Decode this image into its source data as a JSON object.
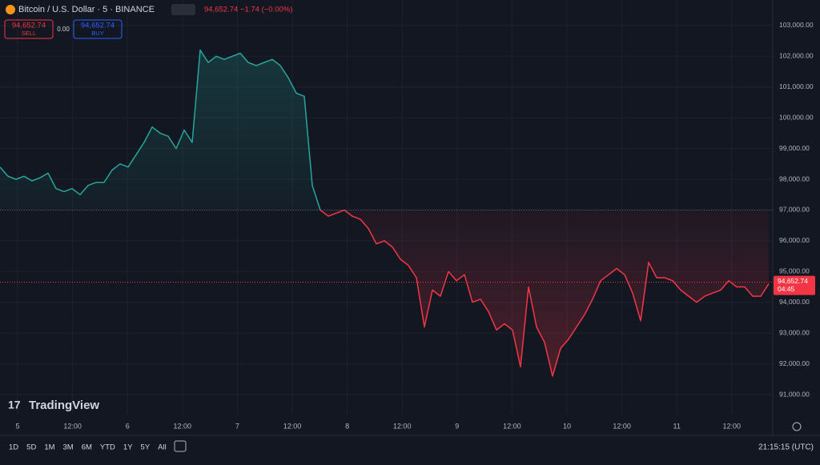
{
  "header": {
    "symbol": "Bitcoin / U.S. Dollar · 5 · BINANCE",
    "quote": "94,652.74 −1.74 (−0.00%)",
    "sell_price": "94,652.74",
    "sell_label": "SELL",
    "spread": "0.00",
    "buy_price": "94,652.74",
    "buy_label": "BUY"
  },
  "chart_data": {
    "type": "line",
    "x_labels": [
      "5",
      "12:00",
      "6",
      "12:00",
      "7",
      "12:00",
      "8",
      "12:00",
      "9",
      "12:00",
      "10",
      "12:00",
      "11",
      "12:00"
    ],
    "values": [
      98400,
      98100,
      98000,
      98100,
      97950,
      98050,
      98200,
      97700,
      97600,
      97700,
      97500,
      97800,
      97900,
      97900,
      98300,
      98500,
      98400,
      98800,
      99200,
      99700,
      99500,
      99400,
      99000,
      99600,
      99200,
      102200,
      101800,
      102000,
      101900,
      102000,
      102100,
      101800,
      101700,
      101800,
      101900,
      101700,
      101300,
      100800,
      100700,
      97800,
      97000,
      96800,
      96900,
      97000,
      96800,
      96700,
      96400,
      95900,
      96000,
      95800,
      95400,
      95200,
      94800,
      93200,
      94400,
      94200,
      95000,
      94700,
      94900,
      94000,
      94100,
      93700,
      93100,
      93300,
      93100,
      91900,
      94500,
      93200,
      92700,
      91600,
      92500,
      92800,
      93200,
      93600,
      94100,
      94700,
      94900,
      95100,
      94900,
      94300,
      93400,
      95300,
      94800,
      94800,
      94700,
      94400,
      94200,
      94000,
      94200,
      94300,
      94400,
      94700,
      94500,
      94500,
      94200,
      94200,
      94600
    ],
    "baseline": 97000,
    "up_color": "#26a69a",
    "down_color": "#f23645",
    "last_price": {
      "value": 94652.74,
      "label": "94,652.74"
    },
    "countdown": "04:45",
    "ylim": [
      90350,
      103830
    ],
    "yticks": [
      {
        "value": 91000,
        "label": "91,000.00"
      },
      {
        "value": 92000,
        "label": "92,000.00"
      },
      {
        "value": 93000,
        "label": "93,000.00"
      },
      {
        "value": 94000,
        "label": "94,000.00"
      },
      {
        "value": 95000,
        "label": "95,000.00"
      },
      {
        "value": 96000,
        "label": "96,000.00"
      },
      {
        "value": 97000,
        "label": "97,000.00"
      },
      {
        "value": 98000,
        "label": "98,000.00"
      },
      {
        "value": 99000,
        "label": "99,000.00"
      },
      {
        "value": 100000,
        "label": "100,000.00"
      },
      {
        "value": 101000,
        "label": "101,000.00"
      },
      {
        "value": 102000,
        "label": "102,000.00"
      },
      {
        "value": 103000,
        "label": "103,000.00"
      }
    ],
    "grid": true
  },
  "watermark": "TradingView",
  "toolbar": {
    "ranges": [
      "1D",
      "5D",
      "1M",
      "3M",
      "6M",
      "YTD",
      "1Y",
      "5Y",
      "All"
    ],
    "clock": "21:15:15 (UTC)"
  }
}
